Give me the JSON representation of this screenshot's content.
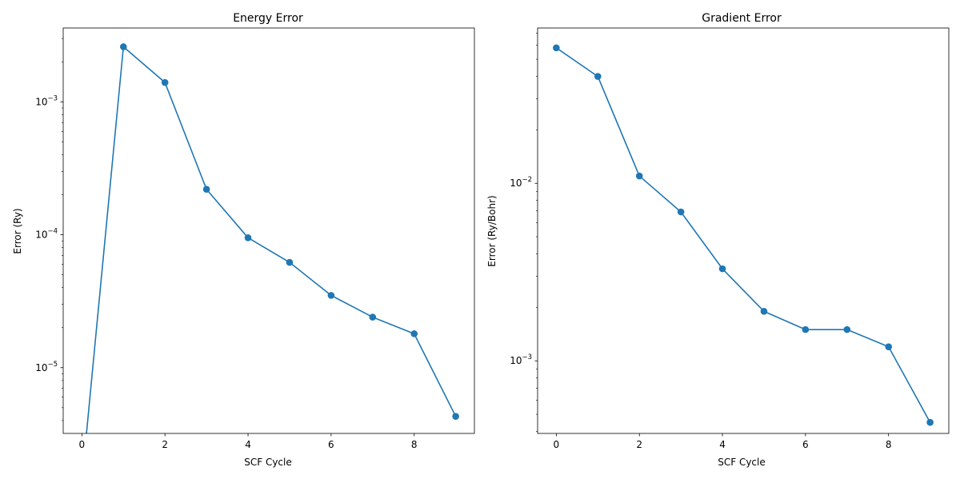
{
  "chart_data": [
    {
      "type": "line",
      "title": "Energy Error",
      "xlabel": "SCF Cycle",
      "ylabel": "Error (Ry)",
      "yscale": "log",
      "grid": false,
      "legend": "none",
      "color": "#1f77b4",
      "marker": "circle",
      "xlim": [
        -0.45,
        9.45
      ],
      "ylim": [
        3.2e-06,
        0.0036
      ],
      "xticks": [
        0,
        2,
        4,
        6,
        8
      ],
      "yticks": [
        {
          "value": 1e-05,
          "base": "10",
          "exp": "−5"
        },
        {
          "value": 0.0001,
          "base": "10",
          "exp": "−4"
        },
        {
          "value": 0.001,
          "base": "10",
          "exp": "−3"
        }
      ],
      "series": [
        {
          "x": [
            0,
            1,
            2,
            3,
            4,
            5,
            6,
            7,
            8,
            9
          ],
          "y": [
            0,
            0.0026,
            0.0014,
            0.00022,
            9.5e-05,
            6.2e-05,
            3.5e-05,
            2.4e-05,
            1.8e-05,
            4.3e-06
          ]
        }
      ]
    },
    {
      "type": "line",
      "title": "Gradient Error",
      "xlabel": "SCF Cycle",
      "ylabel": "Error (Ry/Bohr)",
      "yscale": "log",
      "grid": false,
      "legend": "none",
      "color": "#1f77b4",
      "marker": "circle",
      "xlim": [
        -0.45,
        9.45
      ],
      "ylim": [
        0.00039,
        0.075
      ],
      "xticks": [
        0,
        2,
        4,
        6,
        8
      ],
      "yticks": [
        {
          "value": 0.001,
          "base": "10",
          "exp": "−3"
        },
        {
          "value": 0.01,
          "base": "10",
          "exp": "−2"
        }
      ],
      "series": [
        {
          "x": [
            0,
            1,
            2,
            3,
            4,
            5,
            6,
            7,
            8,
            9
          ],
          "y": [
            0.058,
            0.04,
            0.011,
            0.0069,
            0.0033,
            0.0019,
            0.0015,
            0.0015,
            0.0012,
            0.00045
          ]
        }
      ]
    }
  ]
}
